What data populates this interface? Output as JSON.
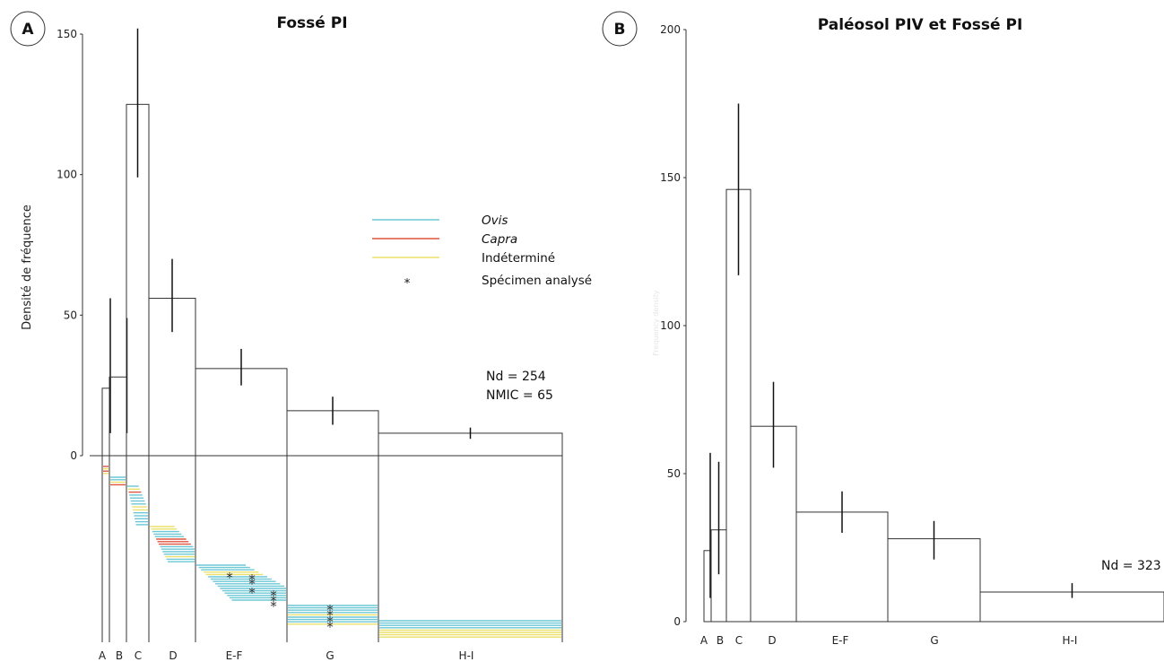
{
  "chart_data": [
    {
      "type": "bar",
      "panel": "A",
      "title": "Fossé PI",
      "ylabel": "Densité de fréquence",
      "ylim": [
        0,
        150
      ],
      "yticks": [
        "0",
        "50",
        "100",
        "150"
      ],
      "categories": [
        "A",
        "B",
        "C",
        "D",
        "E-F",
        "G",
        "H-I"
      ],
      "values": [
        24,
        28,
        125,
        56,
        31,
        16,
        8
      ],
      "error_low": [
        8,
        8,
        99,
        44,
        25,
        11,
        6
      ],
      "error_high": [
        56,
        49,
        152,
        70,
        38,
        21,
        10
      ],
      "legend": {
        "entries": [
          {
            "label": "Ovis",
            "color": "#6bc7d6",
            "italic": true
          },
          {
            "label": "Capra",
            "color": "#e0533d",
            "italic": true
          },
          {
            "label": "Indéterminé",
            "color": "#ece06a",
            "italic": false
          }
        ],
        "marker_label": "Spécimen analysé",
        "marker_symbol": "*",
        "placement": "upper-right"
      },
      "annotations": [
        "Nd = 254",
        "NMIC = 65"
      ],
      "specimen_lines": {
        "A": [
          "capra",
          "indet",
          "capra",
          "indet"
        ],
        "B": [
          "ovis",
          "ovis",
          "indet",
          "capra"
        ],
        "C": [
          "ovis",
          "indet",
          "capra",
          "ovis",
          "ovis",
          "ovis",
          "ovis",
          "indet",
          "indet",
          "ovis",
          "ovis",
          "ovis",
          "ovis",
          "ovis"
        ],
        "D": [
          "indet",
          "indet",
          "ovis",
          "ovis",
          "ovis",
          "capra",
          "capra",
          "capra",
          "ovis",
          "ovis",
          "ovis",
          "ovis",
          "indet",
          "ovis",
          "ovis"
        ],
        "E-F": [
          "ovis",
          "ovis",
          "ovis",
          "indet",
          "indet",
          "ovis",
          "ovis",
          "ovis",
          "ovis",
          "ovis",
          "ovis",
          "ovis",
          "ovis",
          "ovis",
          "ovis",
          "ovis"
        ],
        "G": [
          "ovis",
          "ovis",
          "ovis",
          "ovis",
          "indet",
          "ovis",
          "ovis",
          "ovis",
          "indet"
        ],
        "H-I": [
          "ovis",
          "ovis",
          "ovis",
          "ovis",
          "indet",
          "indet",
          "indet",
          "indet"
        ]
      },
      "analysed_specimens": {
        "E-F": 7,
        "G": 4
      }
    },
    {
      "type": "bar",
      "panel": "B",
      "title": "Paléosol PIV et Fossé PI",
      "ylabel": "",
      "faint_ylabel": "Frequency density",
      "ylim": [
        0,
        200
      ],
      "yticks": [
        "0",
        "50",
        "100",
        "150",
        "200"
      ],
      "categories": [
        "A",
        "B",
        "C",
        "D",
        "E-F",
        "G",
        "H-I"
      ],
      "values": [
        24,
        31,
        146,
        66,
        37,
        28,
        10
      ],
      "error_low": [
        8,
        16,
        117,
        52,
        30,
        21,
        8
      ],
      "error_high": [
        57,
        54,
        175,
        81,
        44,
        34,
        13
      ],
      "annotations": [
        "Nd = 323"
      ]
    }
  ],
  "colors": {
    "ovis": "#6bc7d6",
    "capra": "#e0533d",
    "indet": "#ece06a",
    "bars": "#333333"
  }
}
